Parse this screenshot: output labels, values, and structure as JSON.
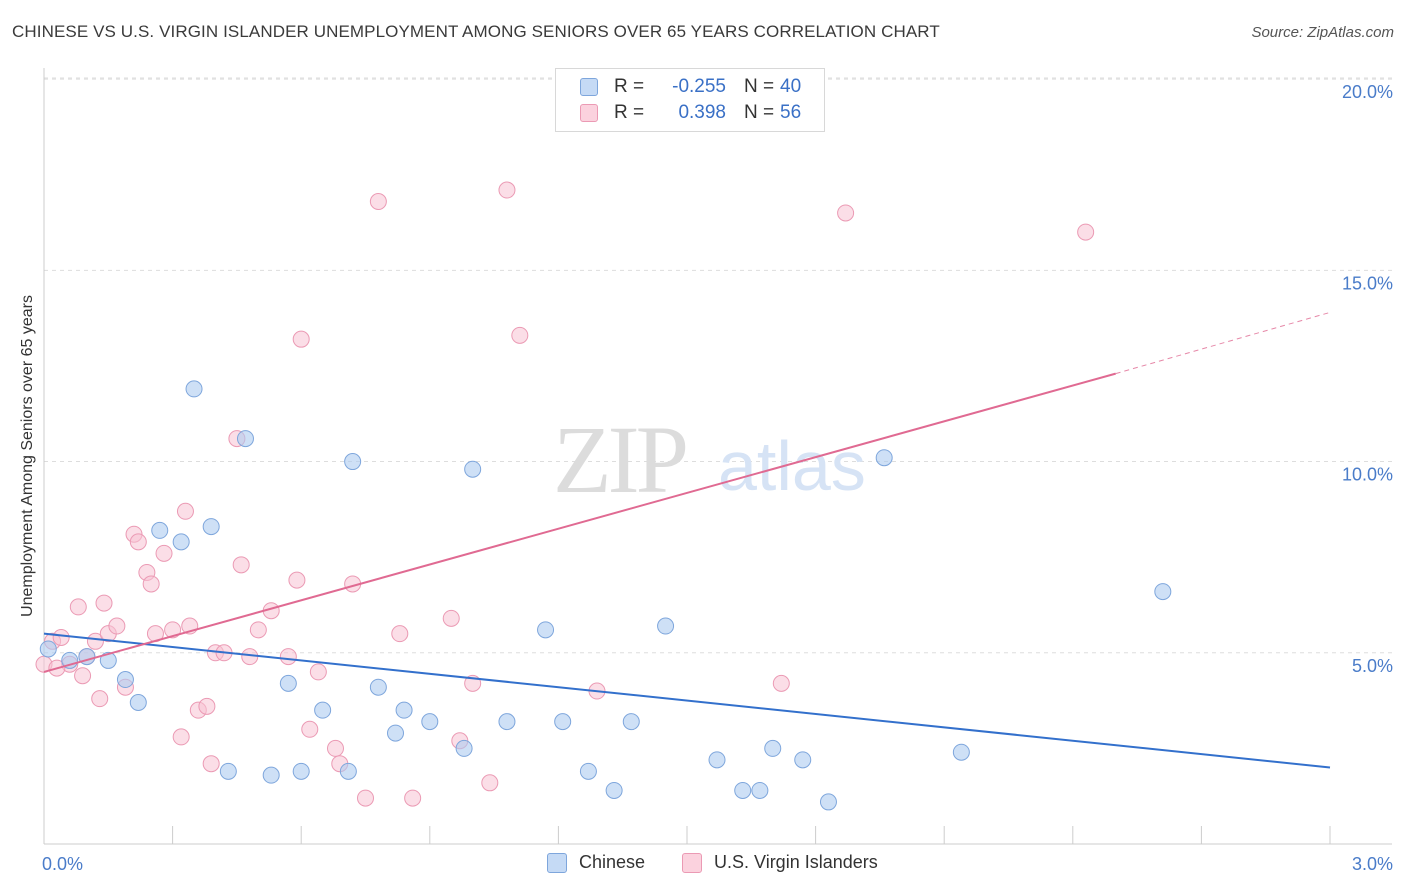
{
  "title": "CHINESE VS U.S. VIRGIN ISLANDER UNEMPLOYMENT AMONG SENIORS OVER 65 YEARS CORRELATION CHART",
  "source": "Source: ZipAtlas.com",
  "watermark": {
    "zip": "ZIP",
    "atlas": "atlas"
  },
  "colors": {
    "chinese_fill": "#aecbf0",
    "chinese_stroke": "#7ea6dc",
    "chinese_line": "#3370cc",
    "vi_fill": "#f8c3d3",
    "vi_stroke": "#eb9ab4",
    "vi_line": "#e06a92",
    "grid": "#dddddd",
    "tick_text": "#4a7cc9"
  },
  "legend": {
    "chinese": {
      "r_label": "R =",
      "r_value": "-0.255",
      "n_label": "N =",
      "n_value": "40"
    },
    "vi": {
      "r_label": "R =",
      "r_value": "0.398",
      "n_label": "N =",
      "n_value": "56"
    }
  },
  "bottom_legend": {
    "chinese": "Chinese",
    "vi": "U.S. Virgin Islanders"
  },
  "chart_data": {
    "type": "scatter",
    "title": "CHINESE VS U.S. VIRGIN ISLANDER UNEMPLOYMENT AMONG SENIORS OVER 65 YEARS CORRELATION CHART",
    "xlabel": "",
    "ylabel": "Unemployment Among Seniors over 65 years",
    "xlim": [
      0,
      3.0
    ],
    "ylim": [
      0,
      20.5
    ],
    "x_tick_labels": {
      "min": "0.0%",
      "max": "3.0%"
    },
    "y_ticks": [
      5,
      10,
      15,
      20
    ],
    "y_tick_labels": [
      "5.0%",
      "10.0%",
      "15.0%",
      "20.0%"
    ],
    "legend_position": "top-center",
    "series": [
      {
        "name": "Chinese",
        "r": -0.255,
        "n": 40,
        "trend": {
          "x0": 0.0,
          "y0": 5.5,
          "x1": 3.0,
          "y1": 2.0
        },
        "points": [
          [
            0.01,
            5.1
          ],
          [
            0.06,
            4.8
          ],
          [
            0.1,
            4.9
          ],
          [
            0.15,
            4.8
          ],
          [
            0.19,
            4.3
          ],
          [
            0.22,
            3.7
          ],
          [
            0.27,
            8.2
          ],
          [
            0.32,
            7.9
          ],
          [
            0.35,
            11.9
          ],
          [
            0.39,
            8.3
          ],
          [
            0.43,
            1.9
          ],
          [
            0.47,
            10.6
          ],
          [
            0.53,
            1.8
          ],
          [
            0.57,
            4.2
          ],
          [
            0.6,
            1.9
          ],
          [
            0.65,
            3.5
          ],
          [
            0.71,
            1.9
          ],
          [
            0.72,
            10.0
          ],
          [
            0.78,
            4.1
          ],
          [
            0.82,
            2.9
          ],
          [
            0.84,
            3.5
          ],
          [
            0.9,
            3.2
          ],
          [
            0.98,
            2.5
          ],
          [
            1.0,
            9.8
          ],
          [
            1.08,
            3.2
          ],
          [
            1.17,
            5.6
          ],
          [
            1.21,
            3.2
          ],
          [
            1.27,
            1.9
          ],
          [
            1.33,
            1.4
          ],
          [
            1.37,
            3.2
          ],
          [
            1.45,
            5.7
          ],
          [
            1.57,
            2.2
          ],
          [
            1.63,
            1.4
          ],
          [
            1.67,
            1.4
          ],
          [
            1.7,
            2.5
          ],
          [
            1.77,
            2.2
          ],
          [
            1.83,
            1.1
          ],
          [
            1.96,
            10.1
          ],
          [
            2.14,
            2.4
          ],
          [
            2.61,
            6.6
          ]
        ]
      },
      {
        "name": "U.S. Virgin Islanders",
        "r": 0.398,
        "n": 56,
        "trend": {
          "x0": 0.0,
          "y0": 4.5,
          "x1": 2.5,
          "y1": 12.3
        },
        "trend_extension": {
          "x0": 2.5,
          "y0": 12.3,
          "x1": 3.0,
          "y1": 13.9
        },
        "points": [
          [
            0.0,
            4.7
          ],
          [
            0.02,
            5.3
          ],
          [
            0.04,
            5.4
          ],
          [
            0.06,
            4.7
          ],
          [
            0.08,
            6.2
          ],
          [
            0.09,
            4.4
          ],
          [
            0.1,
            4.9
          ],
          [
            0.12,
            5.3
          ],
          [
            0.13,
            3.8
          ],
          [
            0.14,
            6.3
          ],
          [
            0.15,
            5.5
          ],
          [
            0.17,
            5.7
          ],
          [
            0.19,
            4.1
          ],
          [
            0.21,
            8.1
          ],
          [
            0.22,
            7.9
          ],
          [
            0.24,
            7.1
          ],
          [
            0.25,
            6.8
          ],
          [
            0.26,
            5.5
          ],
          [
            0.28,
            7.6
          ],
          [
            0.3,
            5.6
          ],
          [
            0.32,
            2.8
          ],
          [
            0.33,
            8.7
          ],
          [
            0.34,
            5.7
          ],
          [
            0.36,
            3.5
          ],
          [
            0.38,
            3.6
          ],
          [
            0.39,
            2.1
          ],
          [
            0.4,
            5.0
          ],
          [
            0.42,
            5.0
          ],
          [
            0.45,
            10.6
          ],
          [
            0.46,
            7.3
          ],
          [
            0.48,
            4.9
          ],
          [
            0.5,
            5.6
          ],
          [
            0.53,
            6.1
          ],
          [
            0.57,
            4.9
          ],
          [
            0.59,
            6.9
          ],
          [
            0.6,
            13.2
          ],
          [
            0.62,
            3.0
          ],
          [
            0.64,
            4.5
          ],
          [
            0.68,
            2.5
          ],
          [
            0.69,
            2.1
          ],
          [
            0.72,
            6.8
          ],
          [
            0.75,
            1.2
          ],
          [
            0.78,
            16.8
          ],
          [
            0.83,
            5.5
          ],
          [
            0.86,
            1.2
          ],
          [
            0.95,
            5.9
          ],
          [
            0.97,
            2.7
          ],
          [
            1.0,
            4.2
          ],
          [
            1.04,
            1.6
          ],
          [
            1.08,
            17.1
          ],
          [
            1.11,
            13.3
          ],
          [
            1.29,
            4.0
          ],
          [
            1.72,
            4.2
          ],
          [
            1.87,
            16.5
          ],
          [
            2.43,
            16.0
          ],
          [
            0.03,
            4.6
          ]
        ]
      }
    ]
  }
}
